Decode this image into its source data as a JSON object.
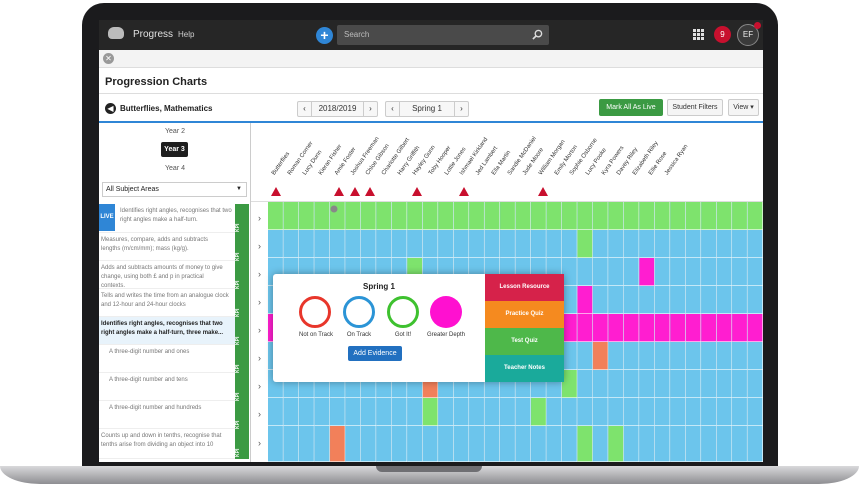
{
  "nav": {
    "app_name": "Progress",
    "help": "Help",
    "search_placeholder": "Search",
    "notification_count": "9",
    "avatar_initials": "EF"
  },
  "page": {
    "title": "Progression Charts",
    "class_title": "Butterflies, Mathematics"
  },
  "toolbar": {
    "year_value": "2018/2019",
    "term_value": "Spring 1",
    "mark_all_label": "Mark All As Live",
    "student_filters_label": "Student Filters",
    "view_label": "View ▾",
    "prev": "‹",
    "next": "›"
  },
  "year_selector": {
    "prev_year": "Year 2",
    "current_year": "Year 3",
    "next_year": "Year 4"
  },
  "subject_filter": {
    "value": "All Subject Areas"
  },
  "students": [
    "Butterflies",
    "Roman Corner",
    "Lucy Dunn",
    "Kieran Fisher",
    "Amie Foster",
    "Joshua Freeman",
    "Chloe Gibson",
    "Charlotte Gilbert",
    "Harry Griffith",
    "Hayley Gunn",
    "Toby Hooper",
    "Lottie Jones",
    "Ishmael Kirkland",
    "Jed Lambert",
    "Ella Martin",
    "Sandie McDaniel",
    "Jude Moore",
    "William Morgan",
    "Emily Morton",
    "Sophie Osborne",
    "Lucy Pooke",
    "Kyra Powers",
    "Davey Riley",
    "Elizabeth Riley",
    "Ellie Rose",
    "Jessica Ryan"
  ],
  "warning_columns": [
    0,
    4,
    5,
    6,
    9,
    12,
    17
  ],
  "objectives": [
    {
      "text": "Identifies right angles, recognises that two right angles make a half-turn.",
      "live": true,
      "live_label": "LIVE",
      "kpi": "KPI"
    },
    {
      "text": "Measures, compare, adds and subtracts lengths (m/cm/mm); mass (kg/g).",
      "kpi": "KPI"
    },
    {
      "text": "Adds and subtracts amounts of money to give change, using both £ and p in practical contexts.",
      "kpi": "KPI"
    },
    {
      "text": "Tells and writes the time from an analogue clock and 12-hour and 24-hour clocks",
      "kpi": "KPI"
    },
    {
      "text": "Identifies right angles, recognises that two right angles make a half-turn, three make...",
      "selected": true,
      "kpi": "KPI"
    },
    {
      "text": "A three-digit number and ones",
      "kpi": "KPI"
    },
    {
      "text": "A three-digit number and tens",
      "kpi": "KPI"
    },
    {
      "text": "A three-digit number and hundreds",
      "kpi": "KPI"
    },
    {
      "text": "Counts up and down in tenths, recognise that tenths arise from dividing an object into 10",
      "kpi": "KPI"
    }
  ],
  "colors": {
    "not_on_track": "#f2805a",
    "on_track": "#6cc5ec",
    "got_it": "#7ee36d",
    "greater_depth": "#ff1ed0",
    "brand_blue": "#2f86d6",
    "kpi_green": "#3b9a43"
  },
  "popup": {
    "title": "Spring 1",
    "options": [
      {
        "label": "Not on Track",
        "icon": "red-ring"
      },
      {
        "label": "On Track",
        "icon": "blue-ring"
      },
      {
        "label": "Got It!",
        "icon": "green-ring"
      },
      {
        "label": "Greater Depth",
        "icon": "magenta-dot"
      }
    ],
    "add_evidence": "Add Evidence",
    "menu": [
      {
        "label": "Lesson Resource",
        "color": "#d6224a"
      },
      {
        "label": "Practice Quiz",
        "color": "#f58a1f"
      },
      {
        "label": "Test Quiz",
        "color": "#4eb84a"
      },
      {
        "label": "Teacher Notes",
        "color": "#1aaa9b"
      }
    ]
  }
}
